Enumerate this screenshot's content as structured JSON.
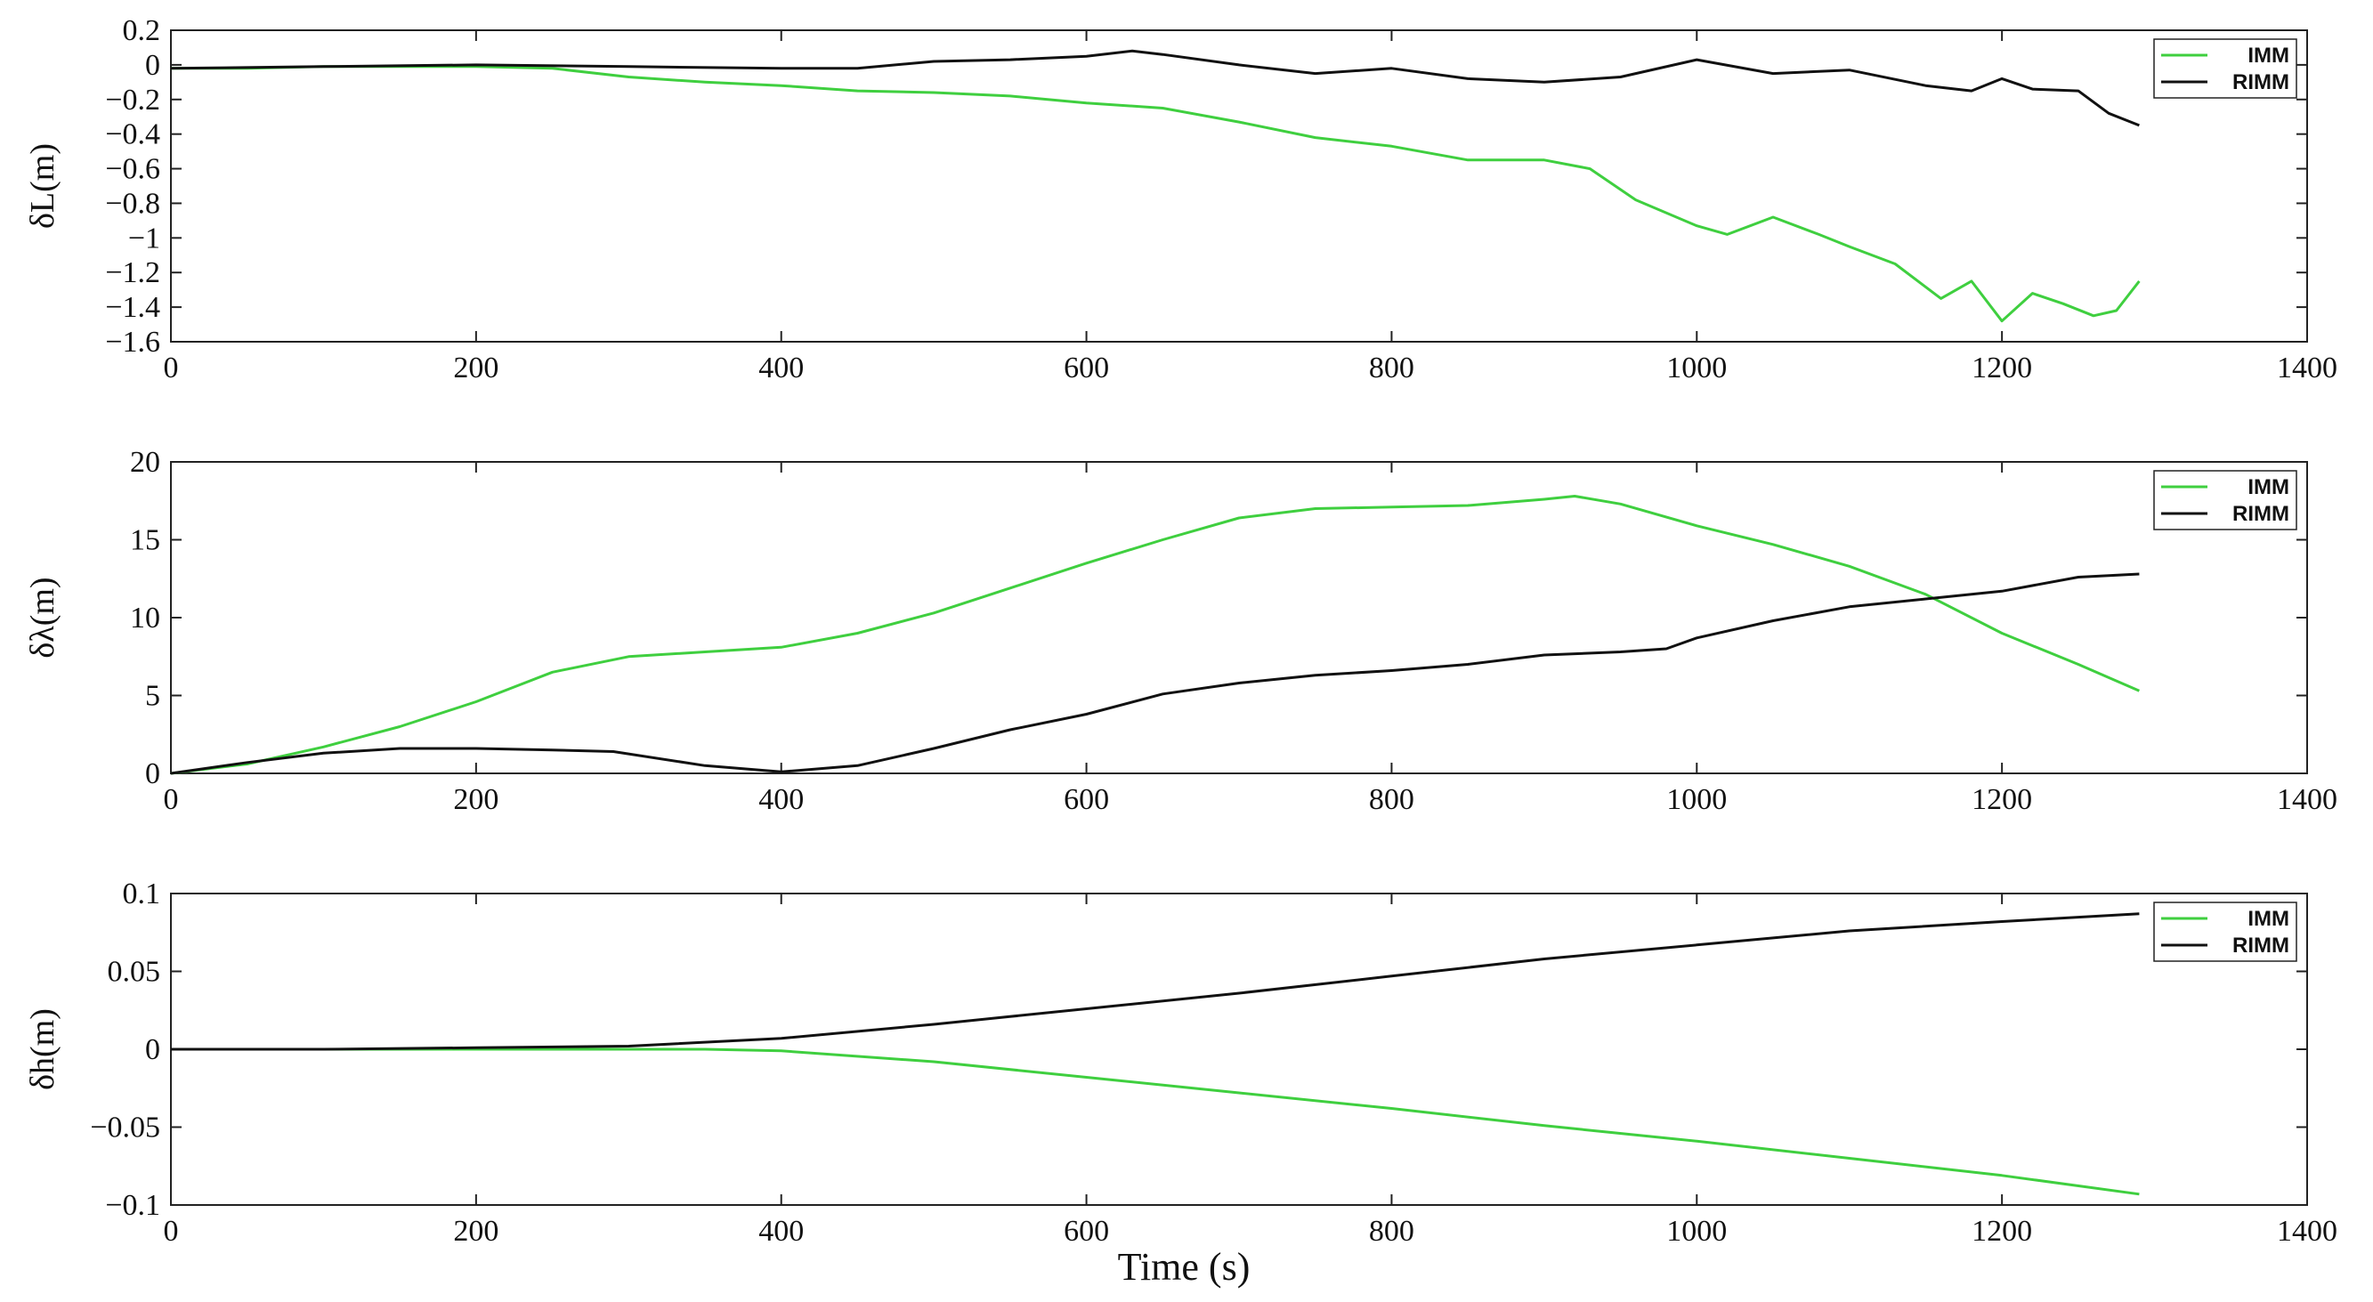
{
  "xlabel": "Time (s)",
  "chart_data": [
    {
      "type": "line",
      "ylabel": "δL(m)",
      "xlim": [
        0,
        1400
      ],
      "ylim": [
        -1.6,
        0.2
      ],
      "xticks": [
        "0",
        "200",
        "400",
        "600",
        "800",
        "1000",
        "1200",
        "1400"
      ],
      "yticks": [
        "0.2",
        "0",
        "−0.2",
        "−0.4",
        "−0.6",
        "−0.8",
        "−1",
        "−1.2",
        "−1.4",
        "−1.6"
      ],
      "ytick_values": [
        0.2,
        0,
        -0.2,
        -0.4,
        -0.6,
        -0.8,
        -1,
        -1.2,
        -1.4,
        -1.6
      ],
      "grid": false,
      "legend_position": "top-right",
      "series": [
        {
          "name": "IMM",
          "color": "#3fcf3f",
          "x": [
            0,
            50,
            100,
            150,
            200,
            250,
            300,
            350,
            400,
            450,
            500,
            550,
            600,
            650,
            700,
            750,
            800,
            850,
            900,
            930,
            960,
            1000,
            1020,
            1050,
            1080,
            1100,
            1130,
            1160,
            1180,
            1200,
            1220,
            1240,
            1260,
            1275,
            1290
          ],
          "y": [
            -0.02,
            -0.02,
            -0.01,
            -0.01,
            -0.01,
            -0.02,
            -0.07,
            -0.1,
            -0.12,
            -0.15,
            -0.16,
            -0.18,
            -0.22,
            -0.25,
            -0.33,
            -0.42,
            -0.47,
            -0.55,
            -0.55,
            -0.6,
            -0.78,
            -0.93,
            -0.98,
            -0.88,
            -0.98,
            -1.05,
            -1.15,
            -1.35,
            -1.25,
            -1.48,
            -1.32,
            -1.38,
            -1.45,
            -1.42,
            -1.25
          ]
        },
        {
          "name": "RIMM",
          "color": "#111111",
          "x": [
            0,
            100,
            200,
            300,
            400,
            450,
            500,
            550,
            600,
            630,
            650,
            700,
            750,
            800,
            850,
            900,
            950,
            1000,
            1050,
            1100,
            1150,
            1180,
            1200,
            1220,
            1250,
            1270,
            1290
          ],
          "y": [
            -0.02,
            -0.01,
            0,
            -0.01,
            -0.02,
            -0.02,
            0.02,
            0.03,
            0.05,
            0.08,
            0.06,
            0,
            -0.05,
            -0.02,
            -0.08,
            -0.1,
            -0.07,
            0.03,
            -0.05,
            -0.03,
            -0.12,
            -0.15,
            -0.08,
            -0.14,
            -0.15,
            -0.28,
            -0.35
          ]
        }
      ]
    },
    {
      "type": "line",
      "ylabel": "δλ(m)",
      "xlim": [
        0,
        1400
      ],
      "ylim": [
        0,
        20
      ],
      "xticks": [
        "0",
        "200",
        "400",
        "600",
        "800",
        "1000",
        "1200",
        "1400"
      ],
      "yticks": [
        "20",
        "15",
        "10",
        "5",
        "0"
      ],
      "ytick_values": [
        20,
        15,
        10,
        5,
        0
      ],
      "grid": false,
      "legend_position": "top-right",
      "series": [
        {
          "name": "IMM",
          "color": "#3fcf3f",
          "x": [
            0,
            50,
            100,
            150,
            200,
            250,
            300,
            350,
            400,
            450,
            500,
            550,
            600,
            650,
            700,
            750,
            800,
            850,
            900,
            920,
            950,
            1000,
            1050,
            1100,
            1150,
            1200,
            1250,
            1290
          ],
          "y": [
            0,
            0.6,
            1.7,
            3,
            4.6,
            6.5,
            7.5,
            7.8,
            8.1,
            9,
            10.3,
            11.9,
            13.5,
            15,
            16.4,
            17,
            17.1,
            17.2,
            17.6,
            17.8,
            17.3,
            15.9,
            14.7,
            13.3,
            11.5,
            9,
            7,
            5.3
          ]
        },
        {
          "name": "RIMM",
          "color": "#111111",
          "x": [
            0,
            50,
            100,
            150,
            200,
            250,
            290,
            350,
            400,
            450,
            500,
            550,
            600,
            650,
            700,
            750,
            800,
            850,
            900,
            950,
            980,
            1000,
            1050,
            1100,
            1150,
            1200,
            1250,
            1290
          ],
          "y": [
            0,
            0.7,
            1.3,
            1.6,
            1.6,
            1.5,
            1.4,
            0.5,
            0.1,
            0.5,
            1.6,
            2.8,
            3.8,
            5.1,
            5.8,
            6.3,
            6.6,
            7,
            7.6,
            7.8,
            8,
            8.7,
            9.8,
            10.7,
            11.2,
            11.7,
            12.6,
            12.8
          ]
        }
      ]
    },
    {
      "type": "line",
      "ylabel": "δh(m)",
      "xlim": [
        0,
        1400
      ],
      "ylim": [
        -0.1,
        0.1
      ],
      "xticks": [
        "0",
        "200",
        "400",
        "600",
        "800",
        "1000",
        "1200",
        "1400"
      ],
      "yticks": [
        "0.1",
        "0.05",
        "0",
        "−0.05",
        "−0.1"
      ],
      "ytick_values": [
        0.1,
        0.05,
        0,
        -0.05,
        -0.1
      ],
      "grid": false,
      "legend_position": "top-right",
      "series": [
        {
          "name": "IMM",
          "color": "#3fcf3f",
          "x": [
            0,
            100,
            200,
            300,
            350,
            400,
            500,
            600,
            700,
            800,
            900,
            1000,
            1100,
            1200,
            1290
          ],
          "y": [
            0,
            0,
            0,
            0,
            0,
            -0.001,
            -0.008,
            -0.018,
            -0.028,
            -0.038,
            -0.049,
            -0.059,
            -0.07,
            -0.081,
            -0.093
          ]
        },
        {
          "name": "RIMM",
          "color": "#111111",
          "x": [
            0,
            100,
            200,
            300,
            400,
            500,
            600,
            700,
            800,
            900,
            1000,
            1100,
            1200,
            1290
          ],
          "y": [
            0,
            0,
            0.001,
            0.002,
            0.007,
            0.016,
            0.026,
            0.036,
            0.047,
            0.058,
            0.067,
            0.076,
            0.082,
            0.087
          ]
        }
      ]
    }
  ]
}
